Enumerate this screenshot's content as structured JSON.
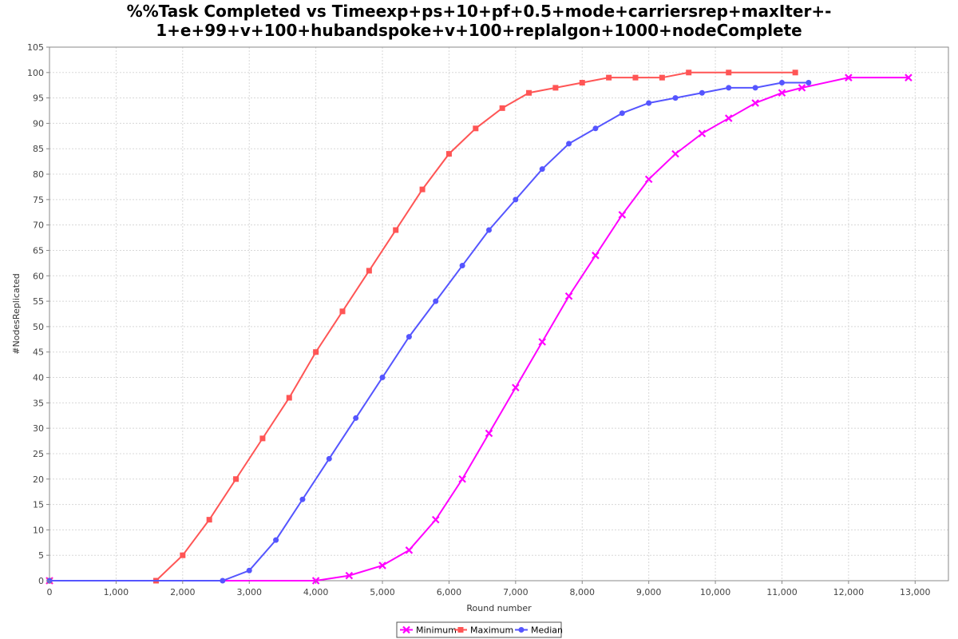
{
  "chart_data": {
    "type": "line",
    "title_lines": [
      "%%Task Completed vs Timeexp+ps+10+pf+0.5+mode+carriersrep+maxIter+-",
      "1+e+99+v+100+hubandspoke+v+100+replalgon+1000+nodeComplete"
    ],
    "xlabel": "Round number",
    "ylabel": "#NodesReplicated",
    "xlim": [
      0,
      13500
    ],
    "ylim": [
      0,
      105
    ],
    "x_ticks": [
      0,
      1000,
      2000,
      3000,
      4000,
      5000,
      6000,
      7000,
      8000,
      9000,
      10000,
      11000,
      12000,
      13000
    ],
    "x_tick_labels": [
      "0",
      "1,000",
      "2,000",
      "3,000",
      "4,000",
      "5,000",
      "6,000",
      "7,000",
      "8,000",
      "9,000",
      "10,000",
      "11,000",
      "12,000",
      "13,000"
    ],
    "y_ticks": [
      0,
      5,
      10,
      15,
      20,
      25,
      30,
      35,
      40,
      45,
      50,
      55,
      60,
      65,
      70,
      75,
      80,
      85,
      90,
      95,
      100,
      105
    ],
    "y_tick_labels": [
      "0",
      "5",
      "10",
      "15",
      "20",
      "25",
      "30",
      "35",
      "40",
      "45",
      "50",
      "55",
      "60",
      "65",
      "70",
      "75",
      "80",
      "85",
      "90",
      "95",
      "100",
      "105"
    ],
    "grid": true,
    "legend_position": "bottom-center",
    "series": [
      {
        "name": "Minimum",
        "color": "#ff00ff",
        "marker": "x",
        "x": [
          0,
          4000,
          4500,
          5000,
          5400,
          5800,
          6200,
          6600,
          7000,
          7400,
          7800,
          8200,
          8600,
          9000,
          9400,
          9800,
          10200,
          10600,
          11000,
          11300,
          12000,
          12900
        ],
        "y": [
          0,
          0,
          1,
          3,
          6,
          12,
          20,
          29,
          38,
          47,
          56,
          64,
          72,
          79,
          84,
          88,
          91,
          94,
          96,
          97,
          99,
          99
        ]
      },
      {
        "name": "Maximum",
        "color": "#ff5555",
        "marker": "square",
        "x": [
          0,
          1600,
          2000,
          2400,
          2800,
          3200,
          3600,
          4000,
          4400,
          4800,
          5200,
          5600,
          6000,
          6400,
          6800,
          7200,
          7600,
          8000,
          8400,
          8800,
          9200,
          9600,
          10200,
          11200
        ],
        "y": [
          0,
          0,
          5,
          12,
          20,
          28,
          36,
          45,
          53,
          61,
          69,
          77,
          84,
          89,
          93,
          96,
          97,
          98,
          99,
          99,
          99,
          100,
          100,
          100
        ]
      },
      {
        "name": "Median",
        "color": "#5555ff",
        "marker": "circle",
        "x": [
          0,
          2600,
          3000,
          3400,
          3800,
          4200,
          4600,
          5000,
          5400,
          5800,
          6200,
          6600,
          7000,
          7400,
          7800,
          8200,
          8600,
          9000,
          9400,
          9800,
          10200,
          10600,
          11000,
          11400
        ],
        "y": [
          0,
          0,
          2,
          8,
          16,
          24,
          32,
          40,
          48,
          55,
          62,
          69,
          75,
          81,
          86,
          89,
          92,
          94,
          95,
          96,
          97,
          97,
          98,
          98
        ]
      }
    ]
  }
}
